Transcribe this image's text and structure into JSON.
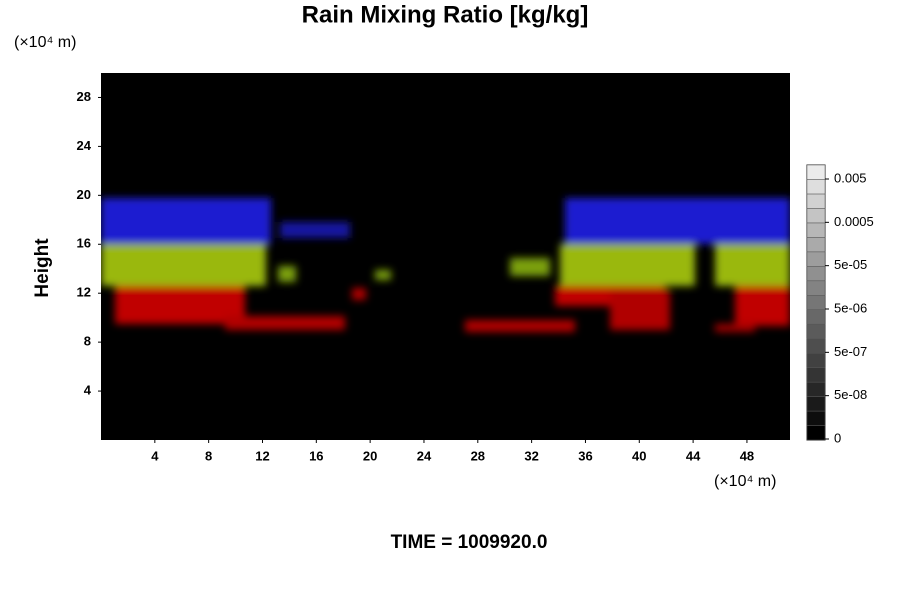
{
  "chart_data": {
    "type": "heatmap",
    "title": "Rain Mixing Ratio [kg/kg]",
    "x_unit": "(×10⁴ m)",
    "y_unit": "(×10⁴ m)",
    "y_label": "Height",
    "xlim": [
      0,
      51.2
    ],
    "xticks": [
      4,
      8,
      12,
      16,
      20,
      24,
      28,
      32,
      36,
      40,
      44,
      48
    ],
    "ylim": [
      0,
      30
    ],
    "yticks": [
      4,
      8,
      12,
      16,
      20,
      24,
      28
    ],
    "colorbar_ticks": [
      0,
      {
        "value": 5e-08,
        "label": "5e-08"
      },
      {
        "value": 5e-07,
        "label": "5e-07"
      },
      {
        "value": 5e-06,
        "label": "5e-06"
      },
      {
        "value": 5e-05,
        "label": "5e-05"
      },
      0.0005,
      0.005
    ],
    "footer": "TIME = 1009920.0"
  }
}
